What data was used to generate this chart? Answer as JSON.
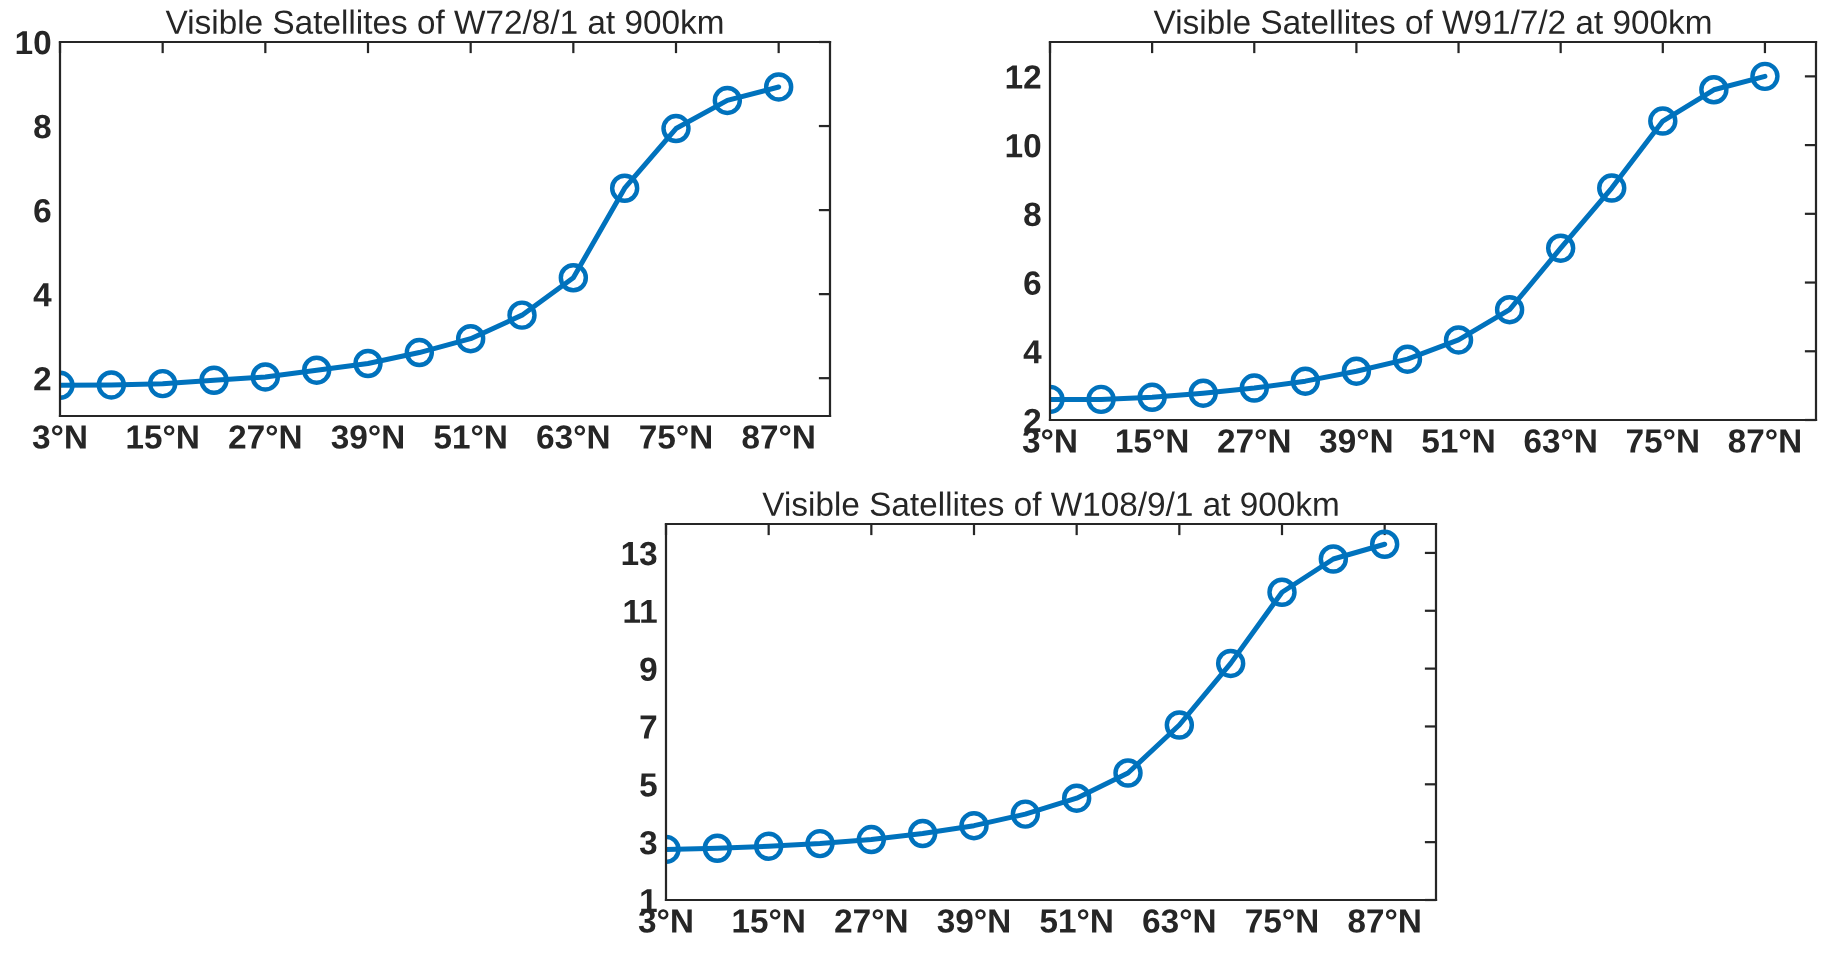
{
  "chart_data": [
    {
      "type": "line",
      "title": "Visible Satellites of W72/8/1 at 900km",
      "x": [
        3,
        9,
        15,
        21,
        27,
        33,
        39,
        45,
        51,
        57,
        63,
        69,
        75,
        81,
        87
      ],
      "xlim": [
        3,
        93
      ],
      "xticks": [
        {
          "value": 3,
          "label": "3°N"
        },
        {
          "value": 15,
          "label": "15°N"
        },
        {
          "value": 27,
          "label": "27°N"
        },
        {
          "value": 39,
          "label": "39°N"
        },
        {
          "value": 51,
          "label": "51°N"
        },
        {
          "value": 63,
          "label": "63°N"
        },
        {
          "value": 75,
          "label": "75°N"
        },
        {
          "value": 87,
          "label": "87°N"
        }
      ],
      "ylim": [
        1.1,
        10
      ],
      "yticks": [
        2,
        4,
        6,
        8,
        10
      ],
      "marker": "circle",
      "line_style": "solid",
      "grid": false,
      "legend": false,
      "series": [
        {
          "color": "#0072bd",
          "values": [
            1.83,
            1.84,
            1.87,
            1.95,
            2.03,
            2.19,
            2.35,
            2.61,
            2.94,
            3.5,
            4.39,
            6.52,
            7.94,
            8.61,
            8.93
          ]
        }
      ]
    },
    {
      "type": "line",
      "title": "Visible Satellites of W91/7/2 at 900km",
      "x": [
        3,
        9,
        15,
        21,
        27,
        33,
        39,
        45,
        51,
        57,
        63,
        69,
        75,
        81,
        87
      ],
      "xlim": [
        3,
        93
      ],
      "xticks": [
        {
          "value": 3,
          "label": "3°N"
        },
        {
          "value": 15,
          "label": "15°N"
        },
        {
          "value": 27,
          "label": "27°N"
        },
        {
          "value": 39,
          "label": "39°N"
        },
        {
          "value": 51,
          "label": "51°N"
        },
        {
          "value": 63,
          "label": "63°N"
        },
        {
          "value": 75,
          "label": "75°N"
        },
        {
          "value": 87,
          "label": "87°N"
        }
      ],
      "ylim": [
        2,
        13
      ],
      "yticks": [
        2,
        4,
        6,
        8,
        10,
        12
      ],
      "marker": "circle",
      "line_style": "solid",
      "grid": false,
      "legend": false,
      "series": [
        {
          "color": "#0072bd",
          "values": [
            2.6,
            2.6,
            2.66,
            2.78,
            2.93,
            3.13,
            3.42,
            3.77,
            4.33,
            5.21,
            7.0,
            8.75,
            10.7,
            11.61,
            12.0
          ]
        }
      ]
    },
    {
      "type": "line",
      "title": "Visible Satellites of W108/9/1 at 900km",
      "x": [
        3,
        9,
        15,
        21,
        27,
        33,
        39,
        45,
        51,
        57,
        63,
        69,
        75,
        81,
        87
      ],
      "xlim": [
        3,
        93
      ],
      "xticks": [
        {
          "value": 3,
          "label": "3°N"
        },
        {
          "value": 15,
          "label": "15°N"
        },
        {
          "value": 27,
          "label": "27°N"
        },
        {
          "value": 39,
          "label": "39°N"
        },
        {
          "value": 51,
          "label": "51°N"
        },
        {
          "value": 63,
          "label": "63°N"
        },
        {
          "value": 75,
          "label": "75°N"
        },
        {
          "value": 87,
          "label": "87°N"
        }
      ],
      "ylim": [
        1,
        14
      ],
      "yticks": [
        1,
        3,
        5,
        7,
        9,
        11,
        13
      ],
      "marker": "circle",
      "line_style": "solid",
      "grid": false,
      "legend": false,
      "series": [
        {
          "color": "#0072bd",
          "values": [
            2.75,
            2.79,
            2.86,
            2.95,
            3.09,
            3.3,
            3.57,
            3.97,
            4.52,
            5.39,
            7.05,
            9.18,
            11.64,
            12.79,
            13.3
          ]
        }
      ]
    }
  ]
}
